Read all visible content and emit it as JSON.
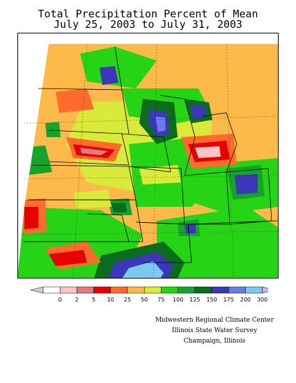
{
  "title_line1": "Total Precipitation Percent of Mean",
  "title_line2": "July 25, 2003 to July 31, 2003",
  "legend": {
    "labels": [
      "0",
      "2",
      "5",
      "10",
      "25",
      "50",
      "75",
      "100",
      "125",
      "150",
      "175",
      "200",
      "300"
    ],
    "colors": [
      "#ffffff",
      "#f9c4c4",
      "#e27c7c",
      "#e60000",
      "#ff6b2b",
      "#fdb94a",
      "#d9ea3a",
      "#26d416",
      "#16a32b",
      "#0b6b1e",
      "#3c37b8",
      "#6a7be8",
      "#7cc8f0"
    ],
    "under_color": "#d0d0d0",
    "over_color": "#d9a9ef"
  },
  "credits": {
    "line1": "Midwestern Regional Climate Center",
    "line2": "Illinois State Water Survey",
    "line3": "Champaign, Illinois"
  }
}
